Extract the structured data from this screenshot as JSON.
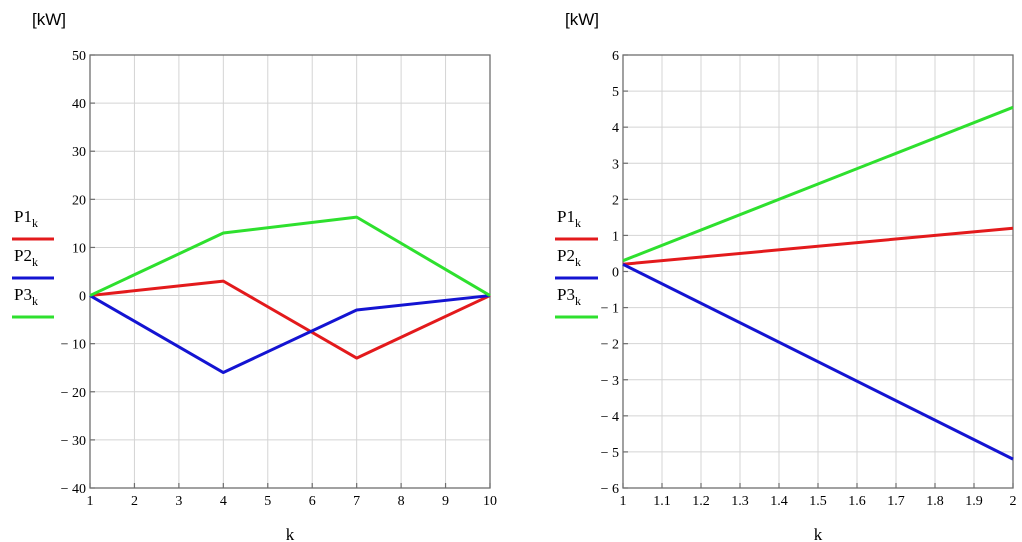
{
  "chart_data": [
    {
      "type": "line",
      "ylabel": "[kW]",
      "xlabel": "k",
      "xlim": [
        1,
        10
      ],
      "ylim": [
        -40,
        50
      ],
      "xticks": [
        "1",
        "2",
        "3",
        "4",
        "5",
        "6",
        "7",
        "8",
        "9",
        "10"
      ],
      "yticks": [
        "50",
        "40",
        "30",
        "20",
        "10",
        "0",
        "− 10",
        "− 20",
        "− 30",
        "− 40"
      ],
      "grid": true,
      "legend_position": "left",
      "series": [
        {
          "name": "P1",
          "sub": "k",
          "color": "#e31a1c",
          "x": [
            1,
            4,
            7,
            10
          ],
          "y": [
            0,
            3,
            -13,
            0
          ]
        },
        {
          "name": "P2",
          "sub": "k",
          "color": "#1414d2",
          "x": [
            1,
            4,
            7,
            10
          ],
          "y": [
            0,
            -16,
            -3,
            0
          ]
        },
        {
          "name": "P3",
          "sub": "k",
          "color": "#2ee02e",
          "x": [
            1,
            4,
            7,
            10
          ],
          "y": [
            0,
            13,
            16.3,
            0
          ]
        }
      ]
    },
    {
      "type": "line",
      "ylabel": "[kW]",
      "xlabel": "k",
      "xlim": [
        1,
        2
      ],
      "ylim": [
        -6,
        6
      ],
      "xticks": [
        "1",
        "1.1",
        "1.2",
        "1.3",
        "1.4",
        "1.5",
        "1.6",
        "1.7",
        "1.8",
        "1.9",
        "2"
      ],
      "yticks": [
        "6",
        "5",
        "4",
        "3",
        "2",
        "1",
        "0",
        "− 1",
        "− 2",
        "− 3",
        "− 4",
        "− 5",
        "− 6"
      ],
      "grid": true,
      "legend_position": "left",
      "series": [
        {
          "name": "P1",
          "sub": "k",
          "color": "#e31a1c",
          "x": [
            1,
            2
          ],
          "y": [
            0.2,
            1.2
          ]
        },
        {
          "name": "P2",
          "sub": "k",
          "color": "#1414d2",
          "x": [
            1,
            2
          ],
          "y": [
            0.2,
            -5.2
          ]
        },
        {
          "name": "P3",
          "sub": "k",
          "color": "#2ee02e",
          "x": [
            1,
            2
          ],
          "y": [
            0.3,
            4.55
          ]
        }
      ]
    }
  ]
}
